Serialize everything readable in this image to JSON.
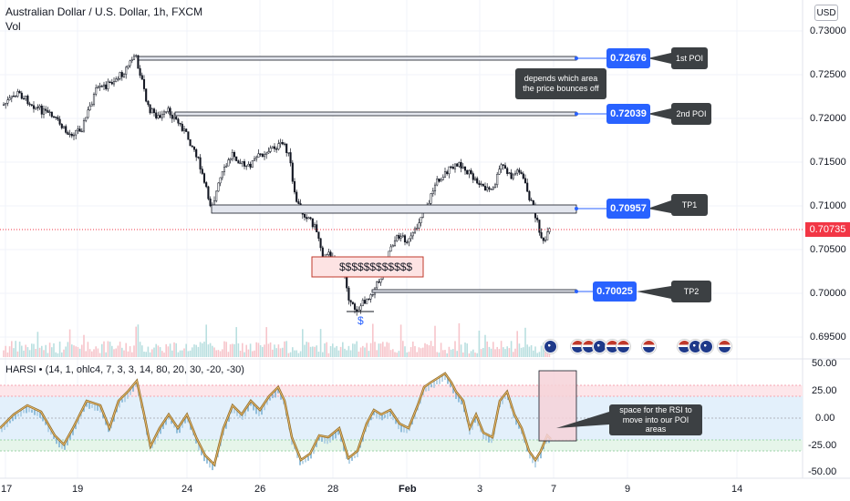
{
  "header": {
    "title": "Australian Dollar / U.S. Dollar, 1h, FXCM",
    "volume_label": "Vol",
    "currency_button": "USD"
  },
  "price_axis": {
    "ticks": [
      "0.73000",
      "0.72500",
      "0.72000",
      "0.71500",
      "0.71000",
      "0.70500",
      "0.70000",
      "0.69500"
    ],
    "current_price": "0.70735"
  },
  "indicator": {
    "label": "HARSI • (14, 1, ohlc4, 7, 3, 3, 14, 80, 20, 30, -20, -30)",
    "ticks": [
      "50.00",
      "25.00",
      "0.00",
      "-25.00",
      "-50.00"
    ]
  },
  "time_axis": {
    "ticks": [
      "17",
      "19",
      "24",
      "26",
      "28",
      "Feb",
      "3",
      "7",
      "9",
      "14"
    ]
  },
  "annotations": {
    "levels": [
      {
        "price": "0.72676",
        "label": "1st POI"
      },
      {
        "price": "0.72039",
        "label": "2nd POI"
      },
      {
        "price": "0.70957",
        "label": "TP1"
      },
      {
        "price": "0.70025",
        "label": "TP2"
      }
    ],
    "note_poi": "depends which area the price bounces off",
    "note_rsi": "space for the RSI to move into our POI areas",
    "liquidity_box": "$$$$$$$$$$$$",
    "liquidity_marker": "$"
  },
  "colors": {
    "candle": "#131722",
    "level_blue": "#2962ff",
    "current_price": "#f23645",
    "harsi_line": "#8b6a2b",
    "callout_bg": "#3c4043"
  }
}
